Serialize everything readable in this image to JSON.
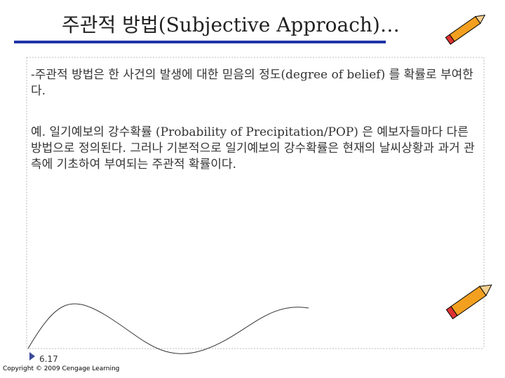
{
  "header": {
    "title": "주관적 방법(Subjective Approach)…"
  },
  "body": {
    "paragraphs": [
      "-주관적 방법은 한 사건의 발생에 대한 믿음의 정도(degree of belief) 를 확률로 부여한다.",
      "예. 일기예보의 강수확률 (Probability of Precipitation/POP) 은 예보자들마다 다른 방법으로 정의된다. 그러나 기본적으로 일기예보의 강수확률은 현재의 날씨상황과 과거 관측에 기초하여 부여되는 주관적 확률이다."
    ]
  },
  "footer": {
    "page": "6.17",
    "copyright": "Copyright © 2009 Cengage Learning"
  }
}
